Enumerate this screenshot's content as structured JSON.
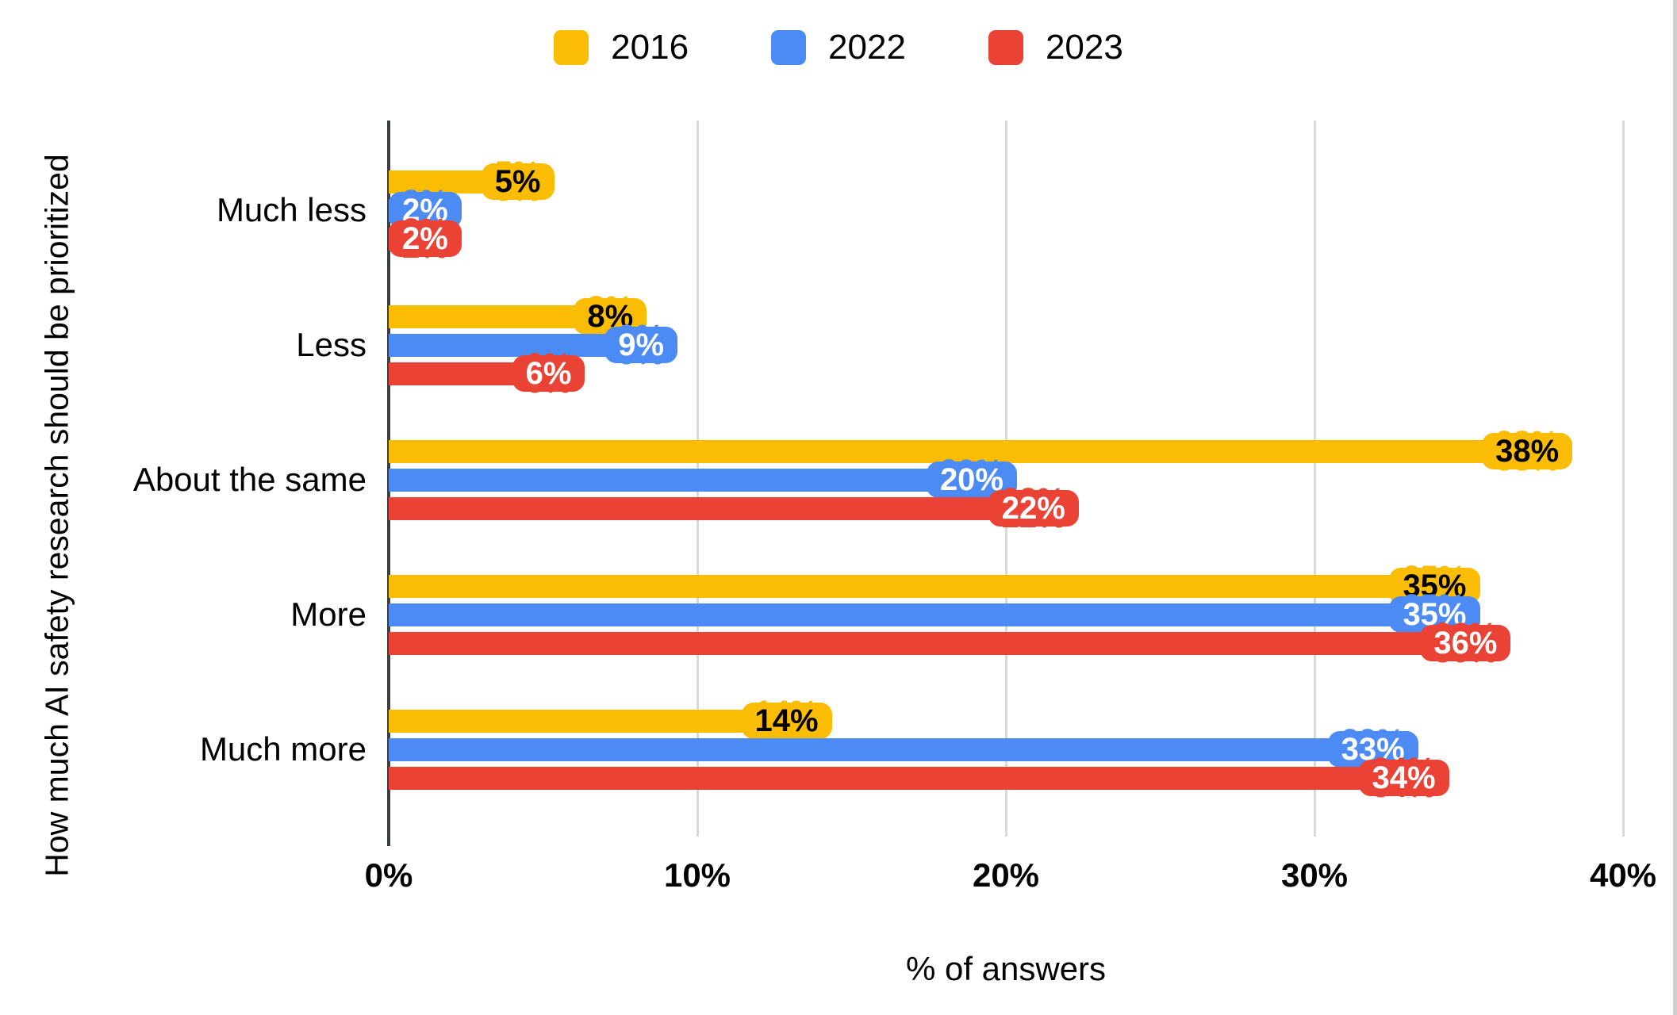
{
  "chart_data": {
    "type": "bar",
    "orientation": "horizontal",
    "title": "",
    "categories": [
      "Much less",
      "Less",
      "About the same",
      "More",
      "Much more"
    ],
    "series": [
      {
        "name": "2016",
        "color": "#FBBC04",
        "label_color": "#000000",
        "values": [
          5,
          8,
          38,
          35,
          14
        ]
      },
      {
        "name": "2022",
        "color": "#4C8BF4",
        "label_color": "#FFFFFF",
        "values": [
          2,
          9,
          20,
          35,
          33
        ]
      },
      {
        "name": "2023",
        "color": "#EA4335",
        "label_color": "#FFFFFF",
        "values": [
          2,
          6,
          22,
          36,
          34
        ]
      }
    ],
    "xlabel": "% of answers",
    "ylabel": "How much AI safety research should be prioritized",
    "x_ticks": [
      "0%",
      "10%",
      "20%",
      "30%",
      "40%"
    ],
    "xlim": [
      0,
      40
    ],
    "value_suffix": "%",
    "grid": true,
    "legend_position": "top",
    "axis_color": "#3c4043",
    "gridline_color": "#d9d9d9"
  }
}
